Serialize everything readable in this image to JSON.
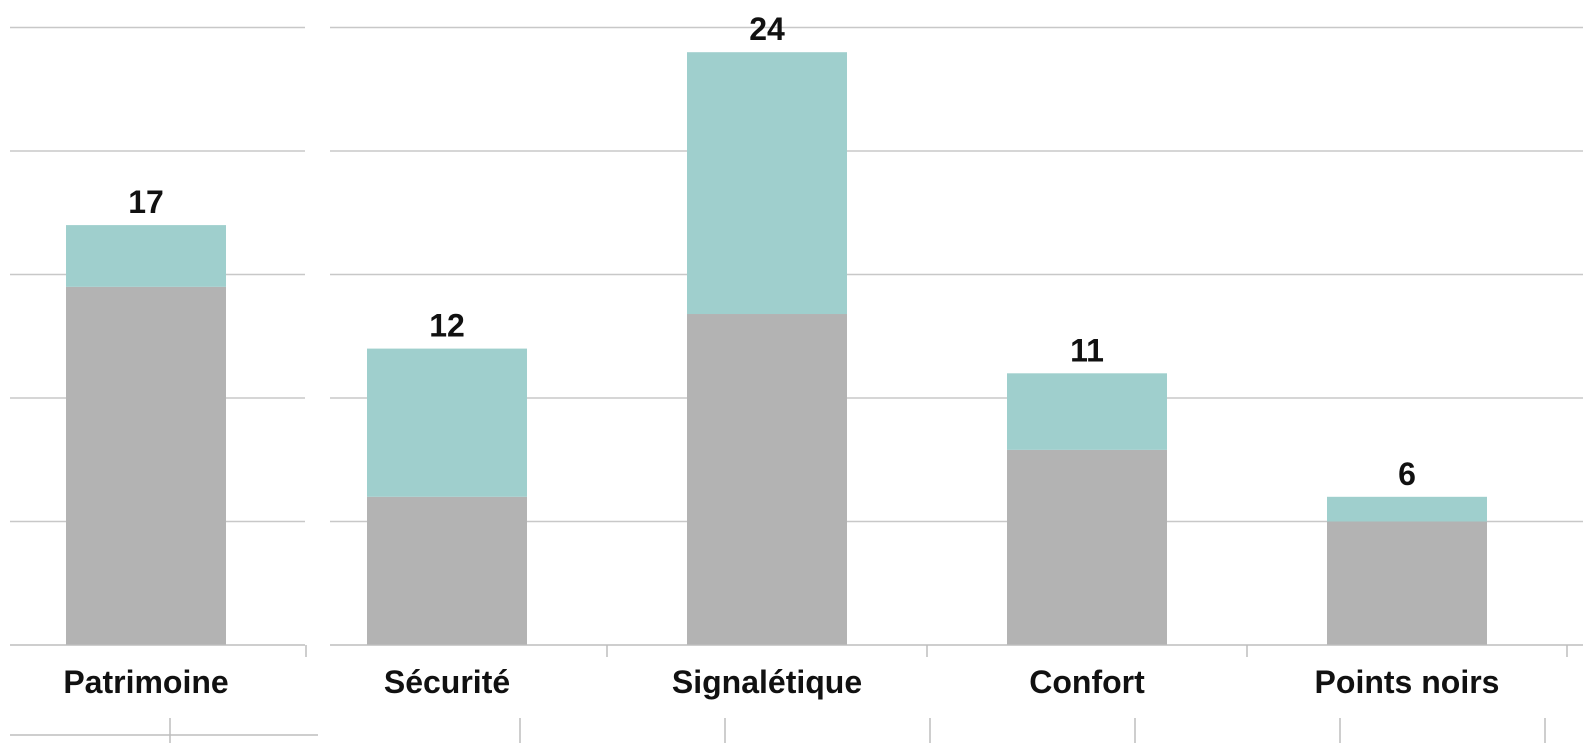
{
  "chart_data": [
    {
      "type": "bar",
      "stacked": true,
      "categories": [
        "Patrimoine"
      ],
      "series": [
        {
          "values": [
            14.5
          ]
        },
        {
          "values": [
            2.5
          ]
        }
      ],
      "totals": [
        17
      ],
      "total_labels": [
        "17"
      ],
      "ylim": [
        0,
        25
      ],
      "grid": true
    },
    {
      "type": "bar",
      "stacked": true,
      "categories": [
        "Sécurité",
        "Signalétique",
        "Confort",
        "Points noirs"
      ],
      "series": [
        {
          "values": [
            6,
            13.4,
            7.9,
            5
          ]
        },
        {
          "values": [
            6,
            10.6,
            3.1,
            1
          ]
        }
      ],
      "totals": [
        12,
        24,
        11,
        6
      ],
      "total_labels": [
        "12",
        "24",
        "11",
        "6"
      ],
      "ylim": [
        0,
        25
      ],
      "grid": true
    }
  ],
  "colors": {
    "base": "#b3b3b3",
    "top": "#9fcfcd",
    "grid": "#c8c8c8",
    "axis": "#bdbdbd",
    "text": "#111111"
  }
}
